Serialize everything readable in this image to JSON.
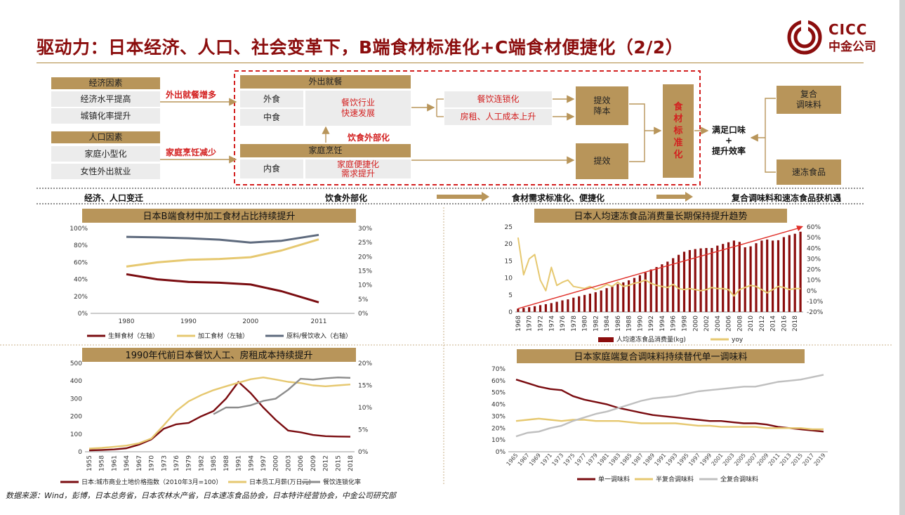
{
  "title": "驱动力：日本经济、人口、社会变革下，B端食材标准化+C端食材便捷化（2/2）",
  "logo": {
    "en": "CICC",
    "cn": "中金公司",
    "color": "#8b0d0d"
  },
  "diagram": {
    "econ_head": "经济因素",
    "econ_items": [
      "经济水平提高",
      "城镇化率提升"
    ],
    "pop_head": "人口因素",
    "pop_items": [
      "家庭小型化",
      "女性外出就业"
    ],
    "arrow1_label": "外出就餐增多",
    "arrow2_label": "家庭烹饪减少",
    "out_head": "外出就餐",
    "out_items": [
      "外食",
      "中食"
    ],
    "out_effect": [
      "餐饮行业",
      "快速发展"
    ],
    "outsourcing_label": "饮食外部化",
    "home_head": "家庭烹饪",
    "home_item": "内食",
    "home_effect": [
      "家庭便捷化",
      "需求提升"
    ],
    "chain": "餐饮连锁化",
    "cost": "房租、人工成本上升",
    "eff1": [
      "提效",
      "降本"
    ],
    "eff2": "提效",
    "std": [
      "食",
      "材",
      "标",
      "准",
      "化"
    ],
    "satisfy": [
      "满足口味",
      "+",
      "提升效率"
    ],
    "out1": [
      "复合",
      "调味料"
    ],
    "out2": "速冻食品",
    "flow": [
      "经济、人口变迁",
      "饮食外部化",
      "食材需求标准化、便捷化",
      "复合调味料和速冻食品获机遇"
    ]
  },
  "source": "数据来源：Wind，彭博，日本总务省，日本农林水产省，日本速冻食品协会，日本特许经营协会，中金公司研究部",
  "chart_data": [
    {
      "type": "line",
      "title": "日本B端食材中加工食材占比持续提升",
      "x": [
        1980,
        1985,
        1990,
        1995,
        2000,
        2005,
        2011
      ],
      "xticks": [
        1980,
        1990,
        2000,
        2011
      ],
      "ylim": [
        0,
        100
      ],
      "y2lim": [
        0,
        30
      ],
      "yticks": [
        "0%",
        "20%",
        "40%",
        "60%",
        "80%",
        "100%"
      ],
      "y2ticks": [
        "0%",
        "5%",
        "10%",
        "15%",
        "20%",
        "25%",
        "30%"
      ],
      "series": [
        {
          "name": "生鲜食材（左轴）",
          "axis": "left",
          "color": "#7a0c10",
          "values": [
            46,
            40,
            37,
            36,
            34,
            26,
            13
          ]
        },
        {
          "name": "加工食材（左轴）",
          "axis": "left",
          "color": "#e6c870",
          "values": [
            55,
            60,
            63,
            64,
            66,
            74,
            87
          ]
        },
        {
          "name": "原料/餐饮收入（右轴）",
          "axis": "right",
          "color": "#5e6a7d",
          "values": [
            27,
            26.8,
            26.5,
            26,
            25,
            25.6,
            27.7
          ]
        }
      ]
    },
    {
      "type": "bar",
      "title": "日本人均速冻食品消费量长期保持提升趋势",
      "x": [
        1968,
        1969,
        1970,
        1971,
        1972,
        1973,
        1974,
        1975,
        1976,
        1977,
        1978,
        1979,
        1980,
        1981,
        1982,
        1983,
        1984,
        1985,
        1986,
        1987,
        1988,
        1989,
        1990,
        1991,
        1992,
        1993,
        1994,
        1995,
        1996,
        1997,
        1998,
        1999,
        2000,
        2001,
        2002,
        2003,
        2004,
        2005,
        2006,
        2007,
        2008,
        2009,
        2010,
        2011,
        2012,
        2013,
        2014,
        2015,
        2016,
        2017,
        2018,
        2019
      ],
      "xticks": [
        1968,
        1970,
        1972,
        1974,
        1976,
        1978,
        1980,
        1982,
        1984,
        1986,
        1988,
        1990,
        1992,
        1994,
        1996,
        1998,
        2000,
        2002,
        2004,
        2006,
        2008,
        2010,
        2012,
        2014,
        2016,
        2018
      ],
      "ylim": [
        0,
        25
      ],
      "y2lim": [
        -20,
        60
      ],
      "yticks": [
        0,
        5,
        10,
        15,
        20,
        25
      ],
      "y2ticks": [
        "-20%",
        "-10%",
        "0%",
        "10%",
        "20%",
        "30%",
        "40%",
        "50%",
        "60%"
      ],
      "series": [
        {
          "name": "人均速冻食品消费量(kg)",
          "axis": "left",
          "color": "#8b0d0d",
          "values": [
            1.0,
            1.2,
            1.4,
            1.7,
            2.0,
            2.3,
            2.6,
            3.0,
            3.4,
            3.7,
            4.2,
            4.6,
            5.0,
            5.4,
            5.8,
            6.3,
            7.0,
            7.5,
            8.2,
            8.7,
            9.3,
            10.0,
            10.8,
            11.6,
            12.5,
            13.2,
            14.0,
            14.8,
            15.8,
            16.8,
            17.7,
            18.2,
            18.5,
            18.7,
            18.8,
            18.8,
            19.5,
            20.0,
            20.5,
            21.0,
            20.6,
            19.0,
            19.3,
            20.2,
            21.0,
            21.3,
            21.0,
            21.1,
            22.0,
            22.6,
            23.0,
            23.6
          ]
        },
        {
          "name": "yoy",
          "axis": "right",
          "color": "#e6c870",
          "values": [
            50,
            15,
            30,
            34,
            10,
            0,
            22,
            5,
            8,
            10,
            4,
            3,
            2,
            4,
            1,
            3,
            6,
            4,
            8,
            4,
            5,
            7,
            8,
            10,
            7,
            5,
            4,
            3,
            6,
            2,
            1,
            2,
            1,
            0,
            1,
            3,
            2,
            2,
            1,
            -5,
            1,
            3,
            5,
            4,
            1,
            -2,
            1,
            4,
            3,
            1,
            2,
            2
          ]
        }
      ]
    },
    {
      "type": "line",
      "title": "1990年代前日本餐饮人工、房租成本持续提升",
      "x": [
        1955,
        1958,
        1961,
        1964,
        1967,
        1970,
        1973,
        1976,
        1979,
        1982,
        1985,
        1988,
        1991,
        1994,
        1997,
        2000,
        2003,
        2006,
        2009,
        2012,
        2015,
        2018
      ],
      "xticks": [
        1955,
        1958,
        1961,
        1964,
        1967,
        1970,
        1973,
        1976,
        1979,
        1982,
        1985,
        1988,
        1991,
        1994,
        1997,
        2000,
        2003,
        2006,
        2009,
        2012,
        2015,
        2018
      ],
      "ylim": [
        0,
        500
      ],
      "y2lim": [
        0,
        20
      ],
      "yticks": [
        0,
        100,
        200,
        300,
        400,
        500
      ],
      "y2ticks": [
        "0%",
        "5%",
        "10%",
        "15%",
        "20%"
      ],
      "series": [
        {
          "name": "日本:城市商业土地价格指数（2010年3月=100）",
          "axis": "left",
          "color": "#7a0c10",
          "values": [
            8,
            10,
            13,
            20,
            40,
            70,
            130,
            155,
            163,
            200,
            230,
            300,
            395,
            330,
            250,
            180,
            120,
            110,
            95,
            88,
            86,
            85
          ]
        },
        {
          "name": "日本员工月薪(万日元)",
          "axis": "left",
          "color": "#e6c870",
          "values": [
            18,
            22,
            28,
            35,
            48,
            75,
            150,
            230,
            285,
            320,
            348,
            370,
            390,
            410,
            420,
            408,
            395,
            388,
            375,
            370,
            375,
            380
          ]
        },
        {
          "name": "餐饮连锁化率",
          "axis": "right",
          "color": "#8c8c8c",
          "values": [
            null,
            null,
            null,
            null,
            null,
            null,
            null,
            null,
            null,
            null,
            8.5,
            10,
            10,
            10.5,
            11.5,
            12,
            14,
            16.5,
            16.3,
            16.6,
            16.8,
            16.7
          ]
        }
      ]
    },
    {
      "type": "line",
      "title": "日本家庭端复合调味料持续替代单一调味料",
      "x": [
        1965,
        1967,
        1969,
        1971,
        1973,
        1975,
        1977,
        1979,
        1981,
        1983,
        1985,
        1987,
        1989,
        1991,
        1993,
        1995,
        1997,
        1999,
        2001,
        2003,
        2005,
        2007,
        2009,
        2011,
        2013,
        2015,
        2017,
        2019
      ],
      "xticks": [
        1965,
        1967,
        1969,
        1971,
        1973,
        1975,
        1977,
        1979,
        1981,
        1983,
        1985,
        1987,
        1989,
        1991,
        1993,
        1995,
        1997,
        1999,
        2001,
        2003,
        2005,
        2007,
        2009,
        2011,
        2013,
        2015,
        2017,
        2019
      ],
      "ylim": [
        0,
        70
      ],
      "yticks": [
        "0%",
        "10%",
        "20%",
        "30%",
        "40%",
        "50%",
        "60%",
        "70%"
      ],
      "series": [
        {
          "name": "单一调味料",
          "color": "#7a0c10",
          "values": [
            61,
            58,
            55,
            53,
            52,
            47,
            44,
            42,
            40,
            37,
            35,
            33,
            31,
            30,
            29,
            28,
            27,
            26,
            26,
            25,
            24,
            24,
            23,
            21,
            20,
            19,
            18,
            17
          ]
        },
        {
          "name": "半复合调味料",
          "color": "#e6c870",
          "values": [
            26,
            27,
            28,
            27,
            26,
            27,
            27,
            26,
            26,
            26,
            25,
            24,
            24,
            24,
            24,
            23,
            22,
            22,
            21,
            21,
            21,
            21,
            20,
            20,
            20,
            20,
            19,
            19
          ]
        },
        {
          "name": "全复合调味料",
          "color": "#bfbfbf",
          "values": [
            13,
            16,
            17,
            20,
            22,
            26,
            29,
            32,
            34,
            37,
            40,
            43,
            45,
            46,
            47,
            49,
            51,
            52,
            53,
            54,
            55,
            55,
            57,
            59,
            60,
            61,
            63,
            65
          ]
        }
      ]
    }
  ]
}
